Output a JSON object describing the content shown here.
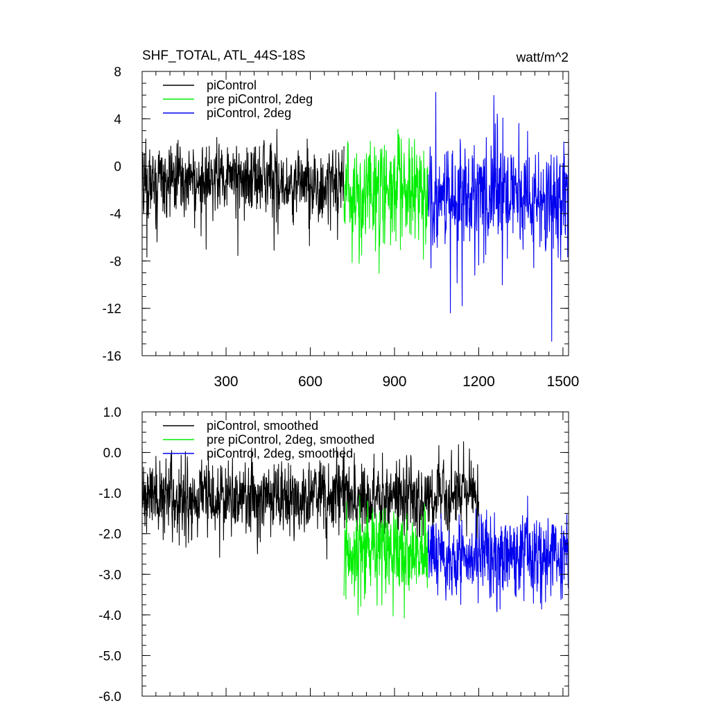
{
  "figure": {
    "title_left": "SHF_TOTAL, ATL_44S-18S",
    "title_right": "watt/m^2"
  },
  "colors": {
    "piControl": "#000000",
    "pre_piControl_2deg": "#00ee00",
    "piControl_2deg": "#0000ee"
  },
  "chart_data": [
    {
      "type": "line",
      "title": "SHF_TOTAL, ATL_44S-18S",
      "units": "watt/m^2",
      "xlim": [
        1,
        1520
      ],
      "ylim": [
        -16,
        8
      ],
      "x_ticks": [
        300,
        600,
        900,
        1200,
        1500
      ],
      "x_tick_labels": [
        "300",
        "600",
        "900",
        "1200",
        "1500"
      ],
      "y_ticks": [
        8,
        4,
        0,
        -4,
        -8,
        -12,
        -16
      ],
      "y_tick_labels": [
        "8",
        "4",
        "0",
        "-4",
        "-8",
        "-12",
        "-16"
      ],
      "legend_position": "top-left",
      "series": [
        {
          "name": "piControl",
          "color": "#000000",
          "x_range": [
            1,
            720
          ],
          "mean": -1.2,
          "std": 1.8
        },
        {
          "name": "pre piControl, 2deg",
          "color": "#00ee00",
          "x_range": [
            720,
            1020
          ],
          "mean": -2.5,
          "std": 2.5
        },
        {
          "name": "piControl, 2deg",
          "color": "#0000ee",
          "x_range": [
            1020,
            1520
          ],
          "mean": -2.6,
          "std": 2.6
        }
      ]
    },
    {
      "type": "line",
      "xlim": [
        1,
        1520
      ],
      "ylim": [
        -6,
        1
      ],
      "x_ticks": [
        300,
        600,
        900,
        1200,
        1500
      ],
      "y_ticks": [
        1,
        0,
        -1,
        -2,
        -3,
        -4,
        -5,
        -6
      ],
      "y_tick_labels": [
        "1.0",
        "0.0",
        "-1.0",
        "-2.0",
        "-3.0",
        "-4.0",
        "-5.0",
        "-6.0"
      ],
      "legend_position": "top-left",
      "series": [
        {
          "name": "piControl, smoothed",
          "color": "#000000",
          "x_range": [
            1,
            1200
          ],
          "mean": -1.1,
          "std": 0.55
        },
        {
          "name": "pre piControl, 2deg, smoothed",
          "color": "#00ee00",
          "x_range": [
            720,
            1020
          ],
          "mean": -2.4,
          "std": 0.65
        },
        {
          "name": "piControl, 2deg, smoothed",
          "color": "#0000ee",
          "x_range": [
            1020,
            1520
          ],
          "mean": -2.5,
          "std": 0.55
        }
      ]
    }
  ]
}
